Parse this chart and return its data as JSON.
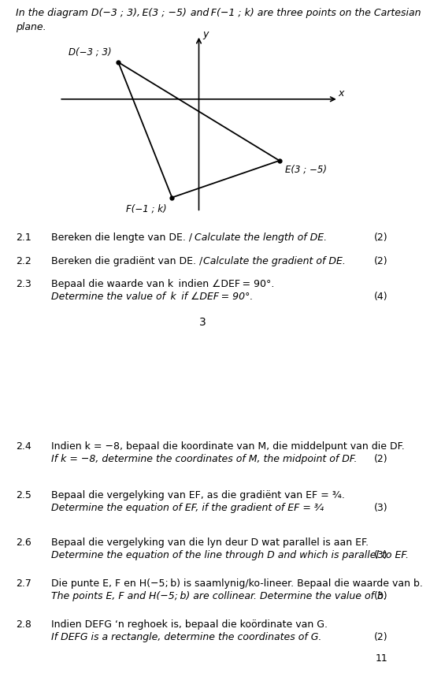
{
  "intro_line1": "In the diagram D(−3 ; 3), E(3 ; −5)  and F(−1 ; k) are three points on the Cartesian",
  "intro_line2": "plane.",
  "graph": {
    "D": [
      -3,
      3
    ],
    "E": [
      3,
      -5
    ],
    "F": [
      -1,
      -8
    ],
    "label_D": "D(−3 ; 3)",
    "label_E": "E(3 ; −5)",
    "label_F": "F(−1 ; k)"
  },
  "q21_afr": "Bereken die lengte van DE. / ",
  "q21_eng": "Calculate the length of DE.",
  "q21_marks": "(2)",
  "q22_afr": "Bereken die gradiënt van DE. / ",
  "q22_eng": "Calculate the gradient of DE.",
  "q22_marks": "(2)",
  "q23_afr": "Bepaal die waarde van k  indien ∠DEF = 90°.",
  "q23_eng": "Determine the value of  k  if ∠DEF = 90°.",
  "q23_marks": "(4)",
  "page1_num": "3",
  "q24_afr": "Indien k = −8, bepaal die koordinate van M, die middelpunt van die DF.",
  "q24_eng": "If k = −8, determine the coordinates of M, the midpoint of DF.",
  "q24_marks": "(2)",
  "q25_afr": "Bepaal die vergelyking van EF, as die gradiënt van EF = ¾.",
  "q25_eng": "Determine the equation of EF, if the gradient of EF = ¾",
  "q25_marks": "(3)",
  "q26_afr": "Bepaal die vergelyking van die lyn deur D wat parallel is aan EF.",
  "q26_eng": "Determine the equation of the line through D and which is parallel to EF.",
  "q26_marks": "(3)",
  "q27_afr": "Die punte E, F en H(−5; b) is saamlynig/ko-lineer. Bepaal die waarde van b.",
  "q27_eng": "The points E, F and H(−5; b) are collinear. Determine the value of b.",
  "q27_marks": "(3)",
  "q28_afr": "Indien DEFG ‘n reghoek is, bepaal die koördinate van G.",
  "q28_eng": "If DEFG is a rectangle, determine the coordinates of G.",
  "q28_marks": "(2)",
  "bg_color": "#ffffff",
  "sep_color": "#ede8e0",
  "text_color": "#000000",
  "tan_color": "#c8a96e",
  "fs": 9.0,
  "fs_page": 10.0
}
